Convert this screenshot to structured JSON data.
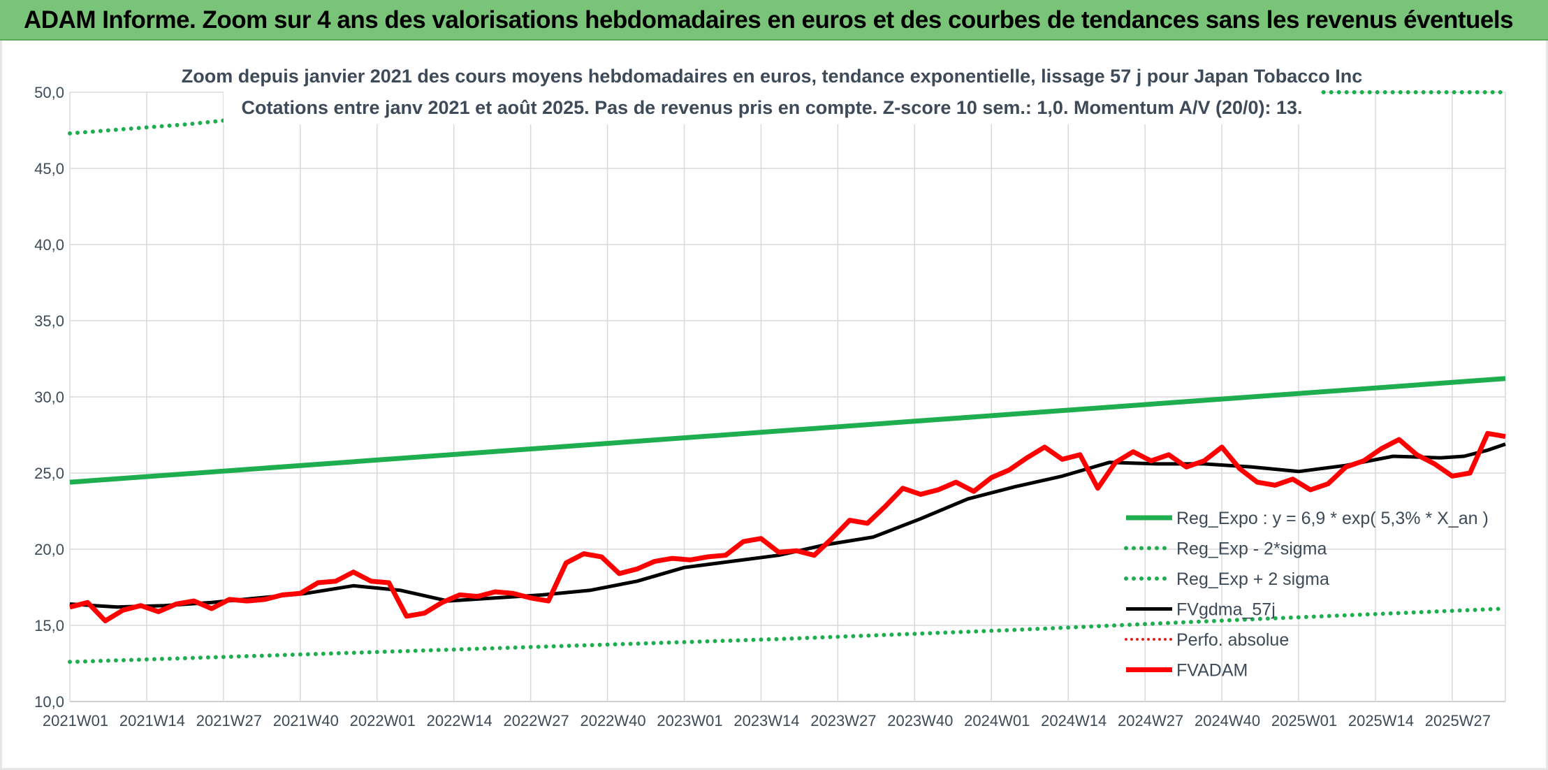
{
  "banner": {
    "title": "ADAM Informe. Zoom sur 4 ans des valorisations hebdomadaires en euros et des courbes de tendances sans les revenus éventuels"
  },
  "chart_data": {
    "type": "line",
    "title": "Zoom depuis janvier 2021 des cours moyens hebdomadaires en euros, tendance exponentielle, lissage 57 j pour Japan Tobacco Inc",
    "subtitle": "Cotations entre janv 2021 et août 2025. Pas de revenus pris en compte. Z-score 10 sem.: 1,0. Momentum A/V (20/0): 13.",
    "ylim": [
      10,
      50
    ],
    "ytick_labels": [
      "10,0",
      "15,0",
      "20,0",
      "25,0",
      "30,0",
      "35,0",
      "40,0",
      "45,0",
      "50,0"
    ],
    "xtick_labels": [
      "2021W01",
      "2021W14",
      "2021W27",
      "2021W40",
      "2022W01",
      "2022W14",
      "2022W27",
      "2022W40",
      "2023W01",
      "2023W14",
      "2023W27",
      "2023W40",
      "2024W01",
      "2024W14",
      "2024W27",
      "2024W40",
      "2025W01",
      "2025W14",
      "2025W27"
    ],
    "x_week_index_range": [
      0,
      243
    ],
    "grid": true,
    "legend_position": "right",
    "colors": {
      "reg_expo": "#1fae4f",
      "sigma_bands": "#1fae4f",
      "fvgdma": "#000000",
      "perfo": "#e02020",
      "fvadam": "#ff0000"
    },
    "series": [
      {
        "name": "Reg_Expo : y = 6,9 * exp( 5,3% *  X_an )",
        "style": "solid-thick",
        "x": [
          0,
          243
        ],
        "y": [
          24.4,
          31.2
        ]
      },
      {
        "name": "Reg_Exp - 2*sigma",
        "style": "dotted",
        "x": [
          0,
          40,
          80,
          120,
          160,
          200,
          243
        ],
        "y": [
          12.6,
          13.1,
          13.6,
          14.1,
          14.7,
          15.4,
          16.1
        ]
      },
      {
        "name": "Reg_Exp + 2 sigma",
        "style": "dotted",
        "x": [
          0,
          10,
          20,
          30,
          40
        ],
        "y": [
          47.3,
          47.6,
          47.9,
          48.3,
          48.6
        ],
        "x_tail": [
          168,
          243
        ],
        "y_tail": [
          50,
          50
        ]
      },
      {
        "name": "FVgdma_57j",
        "style": "solid",
        "x": [
          0,
          8,
          16,
          24,
          32,
          40,
          48,
          56,
          64,
          72,
          80,
          88,
          96,
          104,
          112,
          120,
          128,
          136,
          144,
          152,
          160,
          168,
          176,
          184,
          192,
          200,
          208,
          216,
          224,
          232,
          236,
          240,
          243
        ],
        "y": [
          16.4,
          16.2,
          16.3,
          16.5,
          16.8,
          17.1,
          17.6,
          17.3,
          16.6,
          16.8,
          17.0,
          17.3,
          17.9,
          18.8,
          19.2,
          19.6,
          20.3,
          20.8,
          22.0,
          23.3,
          24.1,
          24.8,
          25.7,
          25.6,
          25.6,
          25.4,
          25.1,
          25.5,
          26.1,
          26.0,
          26.1,
          26.5,
          26.9
        ]
      },
      {
        "name": "Perfo. absolue",
        "style": "dotted-red",
        "x": [],
        "y": []
      },
      {
        "name": "FVADAM",
        "style": "solid-thick",
        "x": [
          0,
          3,
          6,
          9,
          12,
          15,
          18,
          21,
          24,
          27,
          30,
          33,
          36,
          39,
          42,
          45,
          48,
          51,
          54,
          57,
          60,
          63,
          66,
          69,
          72,
          75,
          78,
          81,
          84,
          87,
          90,
          93,
          96,
          99,
          102,
          105,
          108,
          111,
          114,
          117,
          120,
          123,
          126,
          129,
          132,
          135,
          138,
          141,
          144,
          147,
          150,
          153,
          156,
          159,
          162,
          165,
          168,
          171,
          174,
          177,
          180,
          183,
          186,
          189,
          192,
          195,
          198,
          201,
          204,
          207,
          210,
          213,
          216,
          219,
          222,
          225,
          228,
          231,
          234,
          237,
          240,
          243
        ],
        "y": [
          16.2,
          16.5,
          15.3,
          16.0,
          16.3,
          15.9,
          16.4,
          16.6,
          16.1,
          16.7,
          16.6,
          16.7,
          17.0,
          17.1,
          17.8,
          17.9,
          18.5,
          17.9,
          17.8,
          15.6,
          15.8,
          16.5,
          17.0,
          16.9,
          17.2,
          17.1,
          16.8,
          16.6,
          19.1,
          19.7,
          19.5,
          18.4,
          18.7,
          19.2,
          19.4,
          19.3,
          19.5,
          19.6,
          20.5,
          20.7,
          19.8,
          19.9,
          19.6,
          20.7,
          21.9,
          21.7,
          22.8,
          24.0,
          23.6,
          23.9,
          24.4,
          23.8,
          24.7,
          25.2,
          26.0,
          26.7,
          25.9,
          26.2,
          24.0,
          25.7,
          26.4,
          25.8,
          26.2,
          25.4,
          25.8,
          26.7,
          25.3,
          24.4,
          24.2,
          24.6,
          23.9,
          24.3,
          25.4,
          25.8,
          26.6,
          27.2,
          26.2,
          25.6,
          24.8,
          25.0,
          27.6,
          27.4
        ]
      }
    ]
  }
}
